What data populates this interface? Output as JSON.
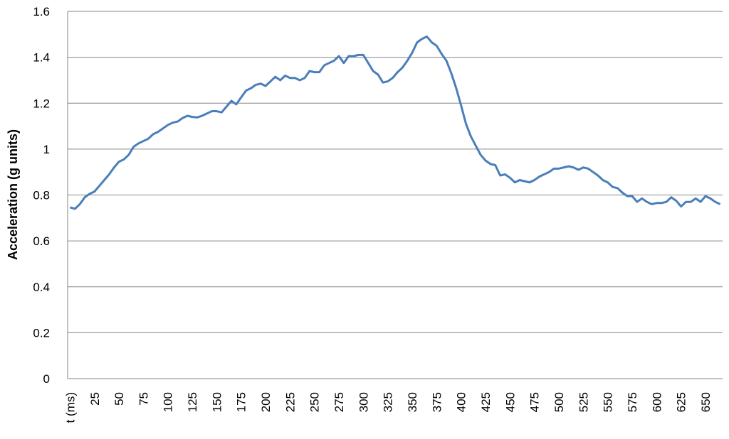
{
  "chart_data": {
    "type": "line",
    "y_label": "Acceleration (g units)",
    "categories": [
      "t (ms)",
      null,
      null,
      null,
      null,
      25,
      null,
      null,
      null,
      null,
      50,
      null,
      null,
      null,
      null,
      75,
      null,
      null,
      null,
      null,
      100,
      null,
      null,
      null,
      null,
      125,
      null,
      null,
      null,
      null,
      150,
      null,
      null,
      null,
      null,
      175,
      null,
      null,
      null,
      null,
      200,
      null,
      null,
      null,
      null,
      225,
      null,
      null,
      null,
      null,
      250,
      null,
      null,
      null,
      null,
      275,
      null,
      null,
      null,
      null,
      300,
      null,
      null,
      null,
      null,
      325,
      null,
      null,
      null,
      null,
      350,
      null,
      null,
      null,
      null,
      375,
      null,
      null,
      null,
      null,
      400,
      null,
      null,
      null,
      null,
      425,
      null,
      null,
      null,
      null,
      450,
      null,
      null,
      null,
      null,
      475,
      null,
      null,
      null,
      null,
      500,
      null,
      null,
      null,
      null,
      525,
      null,
      null,
      null,
      null,
      550,
      null,
      null,
      null,
      null,
      575,
      null,
      null,
      null,
      null,
      600,
      null,
      null,
      null,
      null,
      625,
      null,
      null,
      null,
      null,
      650,
      null,
      null,
      null
    ],
    "values": [
      0.746,
      0.74,
      0.76,
      0.79,
      0.805,
      0.815,
      0.84,
      0.865,
      0.89,
      0.92,
      0.945,
      0.955,
      0.975,
      1.01,
      1.025,
      1.035,
      1.045,
      1.065,
      1.075,
      1.09,
      1.105,
      1.115,
      1.12,
      1.135,
      1.145,
      1.14,
      1.138,
      1.145,
      1.155,
      1.165,
      1.165,
      1.16,
      1.185,
      1.21,
      1.195,
      1.225,
      1.255,
      1.265,
      1.28,
      1.285,
      1.275,
      1.295,
      1.315,
      1.3,
      1.32,
      1.31,
      1.31,
      1.3,
      1.31,
      1.34,
      1.335,
      1.335,
      1.365,
      1.375,
      1.385,
      1.405,
      1.375,
      1.405,
      1.405,
      1.41,
      1.41,
      1.375,
      1.34,
      1.325,
      1.29,
      1.295,
      1.31,
      1.335,
      1.355,
      1.385,
      1.42,
      1.465,
      1.48,
      1.49,
      1.465,
      1.45,
      1.415,
      1.385,
      1.33,
      1.265,
      1.19,
      1.11,
      1.055,
      1.015,
      0.975,
      0.95,
      0.935,
      0.93,
      0.885,
      0.89,
      0.875,
      0.855,
      0.865,
      0.86,
      0.855,
      0.865,
      0.88,
      0.89,
      0.9,
      0.915,
      0.915,
      0.92,
      0.925,
      0.92,
      0.91,
      0.92,
      0.915,
      0.9,
      0.885,
      0.865,
      0.855,
      0.835,
      0.83,
      0.81,
      0.795,
      0.795,
      0.77,
      0.785,
      0.77,
      0.76,
      0.765,
      0.765,
      0.77,
      0.79,
      0.775,
      0.75,
      0.77,
      0.77,
      0.785,
      0.77,
      0.795,
      0.785,
      0.77,
      0.76
    ],
    "color": "#4a7ebb",
    "ylim": [
      0,
      1.6
    ],
    "yticks": [
      0,
      0.2,
      0.4,
      0.6,
      0.8,
      1,
      1.2,
      1.4,
      1.6
    ],
    "grid": true
  }
}
